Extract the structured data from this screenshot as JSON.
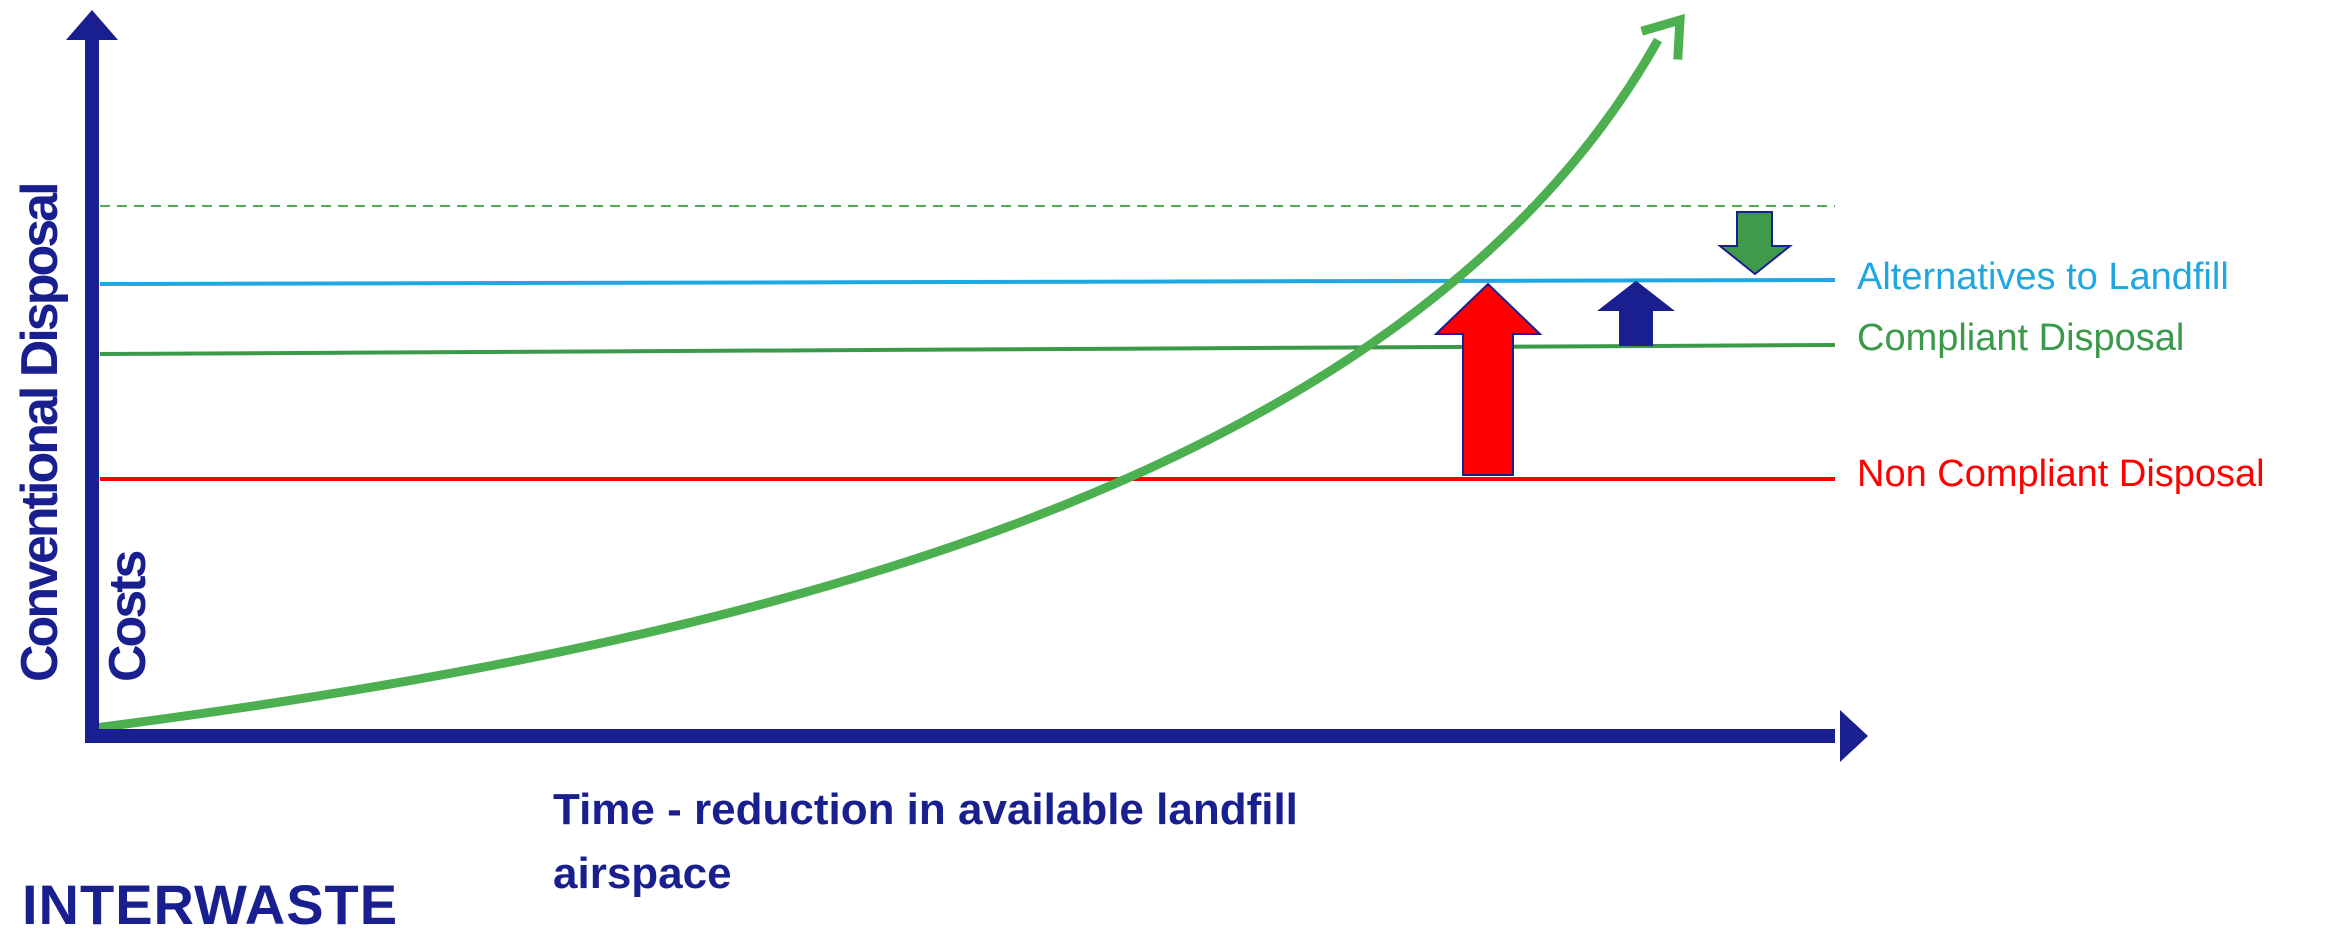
{
  "axes": {
    "y_label_line1": "Conventional Disposal",
    "y_label_line2": "Costs",
    "x_label": "Time - reduction in available landfill airspace"
  },
  "levels": [
    {
      "id": "alternatives",
      "label": "Alternatives to Landfill",
      "color": "#1ea7e1"
    },
    {
      "id": "compliant",
      "label": "Compliant Disposal",
      "color": "#3a9a4a"
    },
    {
      "id": "non-compliant",
      "label": "Non Compliant Disposal",
      "color": "#ff0000"
    }
  ],
  "arrows": [
    {
      "id": "red-arrow",
      "direction": "up",
      "color": "#ff0000"
    },
    {
      "id": "blue-arrow",
      "direction": "up",
      "color": "#1a1f8f"
    },
    {
      "id": "green-arrow",
      "direction": "down",
      "color": "#3f9a4c"
    }
  ],
  "logo": "INTERWASTE",
  "colors": {
    "axis": "#1a1f8f",
    "curve": "#4caf50",
    "threshold_dashed": "#4caf50"
  }
}
